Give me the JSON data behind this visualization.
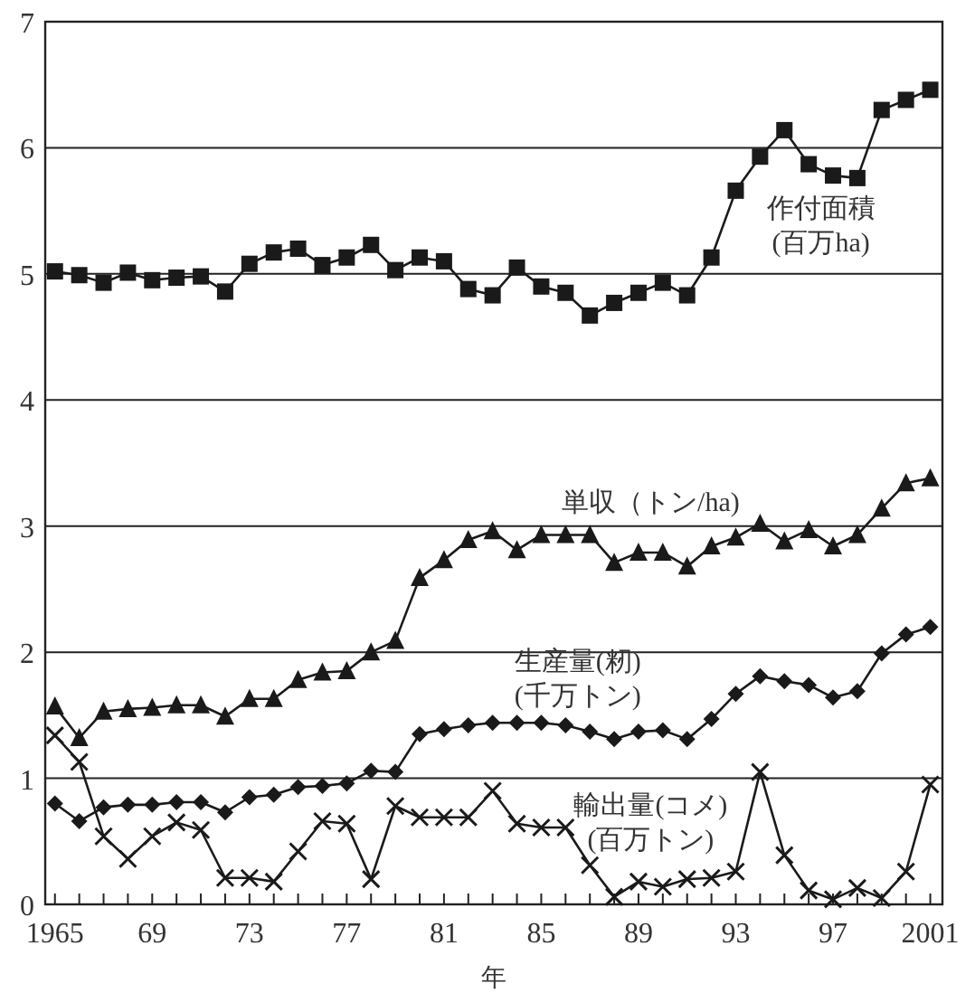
{
  "chart_data": {
    "type": "line",
    "xlabel": "年",
    "x": [
      1965,
      1966,
      1967,
      1968,
      1969,
      1970,
      1971,
      1972,
      1973,
      1974,
      1975,
      1976,
      1977,
      1978,
      1979,
      1980,
      1981,
      1982,
      1983,
      1984,
      1985,
      1986,
      1987,
      1988,
      1989,
      1990,
      1991,
      1992,
      1993,
      1994,
      1995,
      1996,
      1997,
      1998,
      1999,
      2000,
      2001
    ],
    "xlim": [
      1964.6,
      2001.5
    ],
    "xticks": [
      {
        "value": 1965,
        "label": "1965"
      },
      {
        "value": 1966,
        "label": null
      },
      {
        "value": 1967,
        "label": null
      },
      {
        "value": 1968,
        "label": null
      },
      {
        "value": 1969,
        "label": "69"
      },
      {
        "value": 1970,
        "label": null
      },
      {
        "value": 1971,
        "label": null
      },
      {
        "value": 1972,
        "label": null
      },
      {
        "value": 1973,
        "label": "73"
      },
      {
        "value": 1974,
        "label": null
      },
      {
        "value": 1975,
        "label": null
      },
      {
        "value": 1976,
        "label": null
      },
      {
        "value": 1977,
        "label": "77"
      },
      {
        "value": 1978,
        "label": null
      },
      {
        "value": 1979,
        "label": null
      },
      {
        "value": 1980,
        "label": null
      },
      {
        "value": 1981,
        "label": "81"
      },
      {
        "value": 1982,
        "label": null
      },
      {
        "value": 1983,
        "label": null
      },
      {
        "value": 1984,
        "label": null
      },
      {
        "value": 1985,
        "label": "85"
      },
      {
        "value": 1986,
        "label": null
      },
      {
        "value": 1987,
        "label": null
      },
      {
        "value": 1988,
        "label": null
      },
      {
        "value": 1989,
        "label": "89"
      },
      {
        "value": 1990,
        "label": null
      },
      {
        "value": 1991,
        "label": null
      },
      {
        "value": 1992,
        "label": null
      },
      {
        "value": 1993,
        "label": "93"
      },
      {
        "value": 1994,
        "label": null
      },
      {
        "value": 1995,
        "label": null
      },
      {
        "value": 1996,
        "label": null
      },
      {
        "value": 1997,
        "label": "97"
      },
      {
        "value": 1998,
        "label": null
      },
      {
        "value": 1999,
        "label": null
      },
      {
        "value": 2000,
        "label": null
      },
      {
        "value": 2001,
        "label": "2001"
      }
    ],
    "ylim": [
      0,
      7
    ],
    "yticks": [
      0,
      1,
      2,
      3,
      4,
      5,
      6,
      7
    ],
    "grid": "y",
    "line_style": "solid",
    "series": [
      {
        "name": "作付面積\n(百万ha)",
        "color": "#1a1a1a",
        "marker": "square",
        "values": [
          5.02,
          4.99,
          4.93,
          5.01,
          4.95,
          4.97,
          4.98,
          4.86,
          5.08,
          5.17,
          5.2,
          5.07,
          5.13,
          5.23,
          5.03,
          5.13,
          5.1,
          4.88,
          4.83,
          5.05,
          4.9,
          4.85,
          4.67,
          4.77,
          4.85,
          4.93,
          4.83,
          5.13,
          5.66,
          5.93,
          6.14,
          5.87,
          5.78,
          5.76,
          6.3,
          6.38,
          6.46
        ]
      },
      {
        "name": "単収（トン/ha)",
        "color": "#1a1a1a",
        "marker": "triangle",
        "values": [
          1.57,
          1.32,
          1.53,
          1.55,
          1.56,
          1.58,
          1.58,
          1.49,
          1.63,
          1.63,
          1.78,
          1.84,
          1.85,
          2.0,
          2.09,
          2.59,
          2.73,
          2.89,
          2.96,
          2.81,
          2.93,
          2.93,
          2.93,
          2.71,
          2.79,
          2.79,
          2.68,
          2.84,
          2.91,
          3.02,
          2.88,
          2.97,
          2.84,
          2.93,
          3.14,
          3.34,
          3.38
        ]
      },
      {
        "name": "生産量(籾)\n(千万トン)",
        "color": "#1a1a1a",
        "marker": "diamond",
        "values": [
          0.8,
          0.66,
          0.77,
          0.79,
          0.79,
          0.81,
          0.81,
          0.73,
          0.85,
          0.87,
          0.93,
          0.94,
          0.96,
          1.06,
          1.05,
          1.35,
          1.39,
          1.42,
          1.44,
          1.44,
          1.44,
          1.42,
          1.37,
          1.31,
          1.37,
          1.38,
          1.31,
          1.47,
          1.67,
          1.81,
          1.77,
          1.74,
          1.64,
          1.69,
          1.99,
          2.14,
          2.2
        ]
      },
      {
        "name": "輸出量(コメ)\n(百万トン)",
        "color": "#1a1a1a",
        "marker": "cross",
        "values": [
          1.34,
          1.13,
          0.54,
          0.36,
          0.54,
          0.65,
          0.59,
          0.21,
          0.21,
          0.18,
          0.42,
          0.66,
          0.64,
          0.2,
          0.78,
          0.69,
          0.69,
          0.69,
          0.9,
          0.64,
          0.61,
          0.61,
          0.31,
          0.06,
          0.18,
          0.14,
          0.2,
          0.21,
          0.26,
          1.05,
          0.39,
          0.11,
          0.04,
          0.13,
          0.05,
          0.26,
          0.95
        ]
      }
    ]
  }
}
